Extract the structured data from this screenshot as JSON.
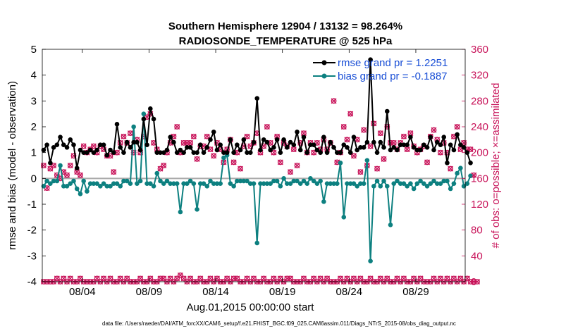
{
  "chart_data": {
    "type": "line",
    "title_line1": "Southern Hemisphere 12904 / 13132 = 98.264%",
    "title_line2": "RADIOSONDE_TEMPERATURE @ 525 hPa",
    "ylabel": "rmse and bias (model - observation)",
    "ylabel_right": "# of obs: o=possible; ×=assimilated",
    "xlabel": "Aug.01,2015 00:00:00 start",
    "footer": "data file: /Users/raeder/DAI/ATM_forcXX/CAM6_setup/f.e21.FHIST_BGC.f09_025.CAM6assim.011/Diags_NTrS_2015-08/obs_diag_output.nc",
    "ylim": [
      -4,
      5
    ],
    "ylim_right": [
      0,
      360
    ],
    "xlim": [
      0.0,
      31.7
    ],
    "yticks": [
      5,
      4,
      3,
      2,
      1,
      0,
      -1,
      -2,
      -3,
      -4
    ],
    "yticks_right": [
      360,
      320,
      280,
      240,
      200,
      160,
      120,
      80,
      40,
      0
    ],
    "xticks": [
      {
        "value": 3.0,
        "label": "08/04"
      },
      {
        "value": 8.0,
        "label": "08/09"
      },
      {
        "value": 13.0,
        "label": "08/14"
      },
      {
        "value": 18.0,
        "label": "08/19"
      },
      {
        "value": 23.0,
        "label": "08/24"
      },
      {
        "value": 28.0,
        "label": "08/29"
      }
    ],
    "x_step_days": 0.25,
    "x_start": 0.1,
    "colors": {
      "rmse": "#000000",
      "bias": "#0d8080",
      "obs": "#c8145a",
      "zero_line": "#aaaaaa"
    },
    "series": [
      {
        "name": "rmse",
        "legend": "rmse grand pr = 1.2251",
        "values": [
          1.1,
          1.3,
          0.6,
          1.2,
          1.3,
          1.6,
          1.3,
          1.2,
          1.5,
          1.3,
          0.4,
          1.1,
          1.0,
          1.0,
          1.1,
          1.0,
          1.1,
          1.3,
          1.3,
          0.9,
          1.1,
          1.0,
          2.1,
          1.2,
          1.0,
          1.4,
          1.2,
          1.4,
          1.4,
          1.1,
          2.3,
          1.3,
          2.7,
          2.3,
          1.0,
          1.0,
          1.0,
          1.1,
          1.6,
          1.4,
          1.0,
          1.1,
          1.0,
          1.2,
          1.2,
          1.0,
          1.0,
          1.3,
          1.0,
          1.2,
          1.5,
          1.8,
          1.1,
          1.3,
          1.0,
          1.0,
          1.5,
          1.0,
          1.3,
          1.1,
          1.5,
          1.0,
          1.0,
          1.4,
          3.1,
          1.1,
          1.5,
          1.4,
          1.1,
          1.2,
          1.5,
          1.0,
          1.5,
          1.2,
          1.4,
          1.3,
          1.8,
          1.1,
          1.6,
          1.0,
          1.3,
          1.3,
          1.1,
          1.0,
          1.6,
          1.0,
          1.4,
          1.2,
          1.0,
          1.0,
          1.3,
          1.2,
          1.0,
          1.6,
          1.1,
          1.2,
          1.2,
          1.4,
          4.6,
          1.4,
          1.0,
          1.4,
          1.2,
          2.6,
          1.1,
          1.2,
          1.1,
          1.3,
          1.3,
          1.3,
          1.6,
          1.2,
          1.1,
          1.1,
          1.3,
          1.2,
          1.6,
          1.1,
          1.4,
          1.3,
          1.6,
          0.6,
          1.3,
          1.1,
          1.7,
          1.3,
          1.2,
          1.0,
          0.6
        ]
      },
      {
        "name": "bias",
        "legend": "bias grand pr = -0.1887",
        "values": [
          -0.3,
          -0.1,
          -0.2,
          -0.1,
          -0.1,
          0.5,
          -0.3,
          -0.3,
          -0.2,
          -0.1,
          -0.4,
          -0.6,
          -0.1,
          -0.5,
          -0.2,
          -0.2,
          -0.2,
          -0.3,
          -0.2,
          -0.3,
          -0.3,
          -0.2,
          -0.2,
          -0.3,
          -0.1,
          -0.1,
          -0.2,
          2.0,
          -0.2,
          -0.1,
          2.5,
          -0.2,
          -0.2,
          -0.3,
          0.2,
          -0.1,
          -0.2,
          -0.1,
          -0.2,
          -0.2,
          -0.2,
          -1.3,
          -0.2,
          -0.2,
          -0.1,
          -0.2,
          -1.2,
          -0.2,
          -0.2,
          -0.3,
          -0.1,
          -0.2,
          -0.2,
          -0.2,
          0.8,
          0.9,
          -0.2,
          -0.3,
          -0.1,
          -0.1,
          -0.1,
          -0.1,
          -0.2,
          -0.2,
          -2.5,
          -0.2,
          -0.2,
          -0.2,
          -0.2,
          -0.1,
          -0.1,
          -0.3,
          0.0,
          -0.2,
          -0.2,
          -0.1,
          -0.1,
          -0.2,
          -0.1,
          -0.2,
          0.0,
          -0.1,
          -0.2,
          -0.1,
          -0.9,
          -0.2,
          -0.2,
          -0.2,
          -0.2,
          0.6,
          -1.5,
          -0.2,
          -0.2,
          -0.2,
          -0.3,
          -0.2,
          -0.2,
          0.7,
          -3.2,
          -0.3,
          -0.1,
          -0.3,
          -0.1,
          -0.3,
          -1.8,
          -0.2,
          -0.1,
          -0.2,
          -0.2,
          -0.3,
          -0.2,
          -0.4,
          -0.2,
          -0.1,
          -0.2,
          -0.3,
          -0.2,
          -0.1,
          -0.2,
          -0.2,
          -0.1,
          -0.1,
          -0.4,
          -0.2,
          0.2,
          0.4,
          -0.3,
          -0.2,
          0.1
        ]
      },
      {
        "name": "obs_count",
        "axis": "right",
        "values": [
          180,
          145,
          175,
          180,
          165,
          160,
          170,
          165,
          180,
          195,
          170,
          165,
          210,
          200,
          205,
          210,
          200,
          210,
          205,
          195,
          195,
          170,
          200,
          215,
          225,
          215,
          230,
          200,
          220,
          200,
          225,
          255,
          260,
          215,
          205,
          175,
          180,
          200,
          215,
          225,
          240,
          200,
          215,
          215,
          215,
          225,
          190,
          210,
          210,
          225,
          205,
          195,
          215,
          205,
          185,
          205,
          220,
          185,
          200,
          175,
          210,
          225,
          210,
          215,
          230,
          200,
          210,
          240,
          215,
          200,
          225,
          185,
          215,
          210,
          170,
          205,
          180,
          215,
          230,
          200,
          215,
          200,
          215,
          205,
          220,
          205,
          215,
          280,
          185,
          200,
          240,
          220,
          260,
          195,
          220,
          170,
          235,
          180,
          210,
          245,
          175,
          230,
          190,
          240,
          215,
          215,
          205,
          215,
          225,
          205,
          230,
          210,
          200,
          205,
          210,
          185,
          225,
          235,
          220,
          200,
          215,
          200,
          175,
          225,
          240,
          205,
          215,
          205,
          205,
          165
        ]
      },
      {
        "name": "obs_assimilated",
        "axis": "right",
        "values": [
          0,
          0,
          0,
          0,
          5,
          0,
          5,
          0,
          5,
          0,
          0,
          5,
          0,
          0,
          0,
          0,
          5,
          0,
          5,
          0,
          5,
          0,
          0,
          5,
          0,
          5,
          0,
          0,
          0,
          5,
          0,
          0,
          5,
          0,
          0,
          5,
          5,
          0,
          5,
          0,
          5,
          10,
          5,
          0,
          5,
          0,
          0,
          5,
          0,
          0,
          5,
          0,
          5,
          0,
          0,
          5,
          0,
          5,
          5,
          0,
          0,
          5,
          0,
          5,
          0,
          0,
          5,
          0,
          0,
          5,
          0,
          5,
          0,
          5,
          5,
          0,
          0,
          0,
          5,
          0,
          0,
          5,
          0,
          5,
          0,
          5,
          0,
          0,
          0,
          5,
          0,
          5,
          0,
          5,
          0,
          5,
          0,
          0,
          5,
          0,
          0,
          5,
          0,
          5,
          0,
          0,
          5,
          0,
          5,
          0,
          0,
          5,
          0,
          5,
          0,
          0,
          0,
          5,
          0,
          5,
          0,
          5,
          0,
          5,
          0,
          5,
          0,
          5,
          0,
          0,
          0
        ]
      }
    ]
  }
}
